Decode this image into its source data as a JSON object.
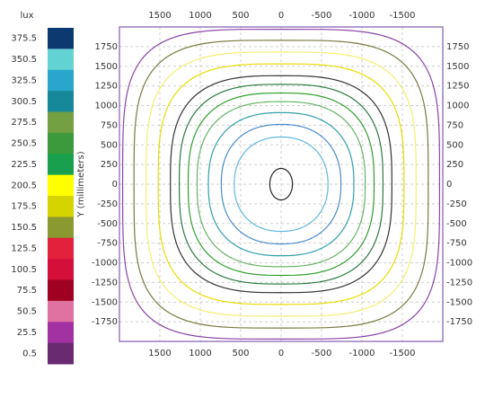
{
  "chart_data": {
    "type": "contour",
    "legend": {
      "title": "lux",
      "levels": [
        375.5,
        350.5,
        325.5,
        300.5,
        275.5,
        250.5,
        225.5,
        200.5,
        175.5,
        150.5,
        125.5,
        100.5,
        75.5,
        50.5,
        25.5,
        0.5
      ],
      "colors": [
        "#0c3a70",
        "#62d2d2",
        "#2aa6cc",
        "#17889a",
        "#72a042",
        "#3c9a3c",
        "#18a04e",
        "#ffff00",
        "#d6d400",
        "#8a9a30",
        "#e2223c",
        "#d4103a",
        "#a00022",
        "#e072a2",
        "#a232a2",
        "#6a2a72"
      ]
    },
    "y_label": "Y (millimeters)",
    "xlim": [
      2000,
      -2000
    ],
    "ylim": [
      -2000,
      2000
    ],
    "xticks": [
      1500,
      1000,
      500,
      0,
      -500,
      -1000,
      -1500
    ],
    "yticks": [
      1750,
      1500,
      1250,
      1000,
      750,
      500,
      250,
      0,
      -250,
      -500,
      -750,
      -1000,
      -1250,
      -1500,
      -1750
    ],
    "grid": true,
    "contours": [
      {
        "color": "#222222",
        "rx": 140,
        "ry": 200
      },
      {
        "color": "#60b8e0",
        "rx": 580,
        "ry": 600
      },
      {
        "color": "#4a8ccc",
        "rx": 740,
        "ry": 760
      },
      {
        "color": "#30a0a8",
        "rx": 900,
        "ry": 910
      },
      {
        "color": "#66b266",
        "rx": 1040,
        "ry": 1050
      },
      {
        "color": "#30a030",
        "rx": 1150,
        "ry": 1160
      },
      {
        "color": "#2a7a44",
        "rx": 1260,
        "ry": 1270
      },
      {
        "color": "#333333",
        "rx": 1370,
        "ry": 1380
      },
      {
        "color": "#e6de00",
        "rx": 1520,
        "ry": 1530
      },
      {
        "color": "#f2f070",
        "rx": 1670,
        "ry": 1680
      },
      {
        "color": "#7a7a44",
        "rx": 1820,
        "ry": 1830
      },
      {
        "color": "#8a44a6",
        "rx": 1960,
        "ry": 1970
      }
    ]
  }
}
